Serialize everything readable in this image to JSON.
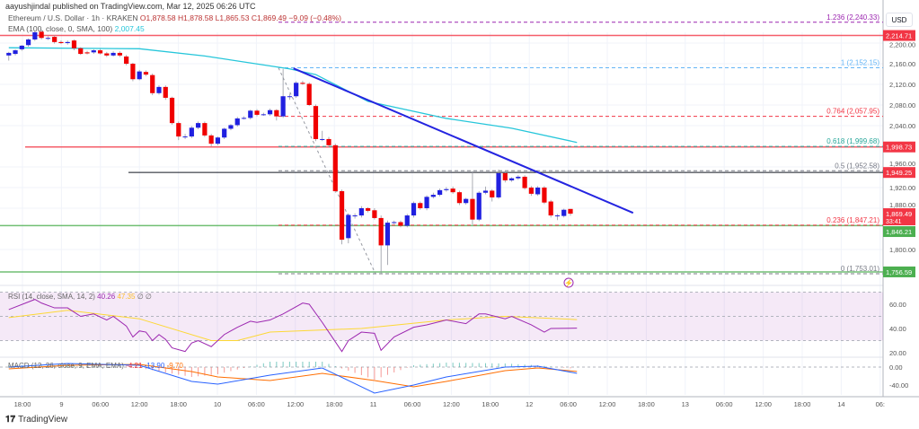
{
  "header": {
    "published": "aayushjindal published on TradingView.com, Mar 12, 2025 06:26 UTC"
  },
  "legend": {
    "symbol": "Ethereum / U.S. Dollar · 1h · KRAKEN",
    "open": "O1,878.58",
    "high": "H1,878.58",
    "low": "L1,865.53",
    "close": "C1,869.49",
    "change": "−9.09 (−0.48%)"
  },
  "ema": {
    "label": "EMA (100, close, 0, SMA, 100)",
    "value": "2,007.45"
  },
  "rsi": {
    "label": "RSI (14, close, SMA, 14, 2)",
    "value": "40.26",
    "sma": "47.35",
    "extra": "∅ ∅"
  },
  "macd": {
    "label": "MACD (12, 26, close, 9, EMA, EMA)",
    "hist": "-4.21",
    "macd": "-13.90",
    "signal": "-9.70"
  },
  "price_axis": {
    "currency": "USD",
    "ticks": [
      "2,200.00",
      "2,160.00",
      "2,120.00",
      "2,080.00",
      "2,040.00",
      "1,960.00",
      "1,920.00",
      "1,880.00",
      "1,800.00"
    ],
    "tick_values": [
      2200,
      2160,
      2120,
      2080,
      2040,
      1960,
      1920,
      1880,
      1800
    ]
  },
  "rsi_axis": {
    "ticks": [
      "60.00",
      "40.00",
      "20.00"
    ],
    "tick_values": [
      60,
      40,
      20
    ]
  },
  "macd_axis": {
    "ticks": [
      "0.00",
      "-40.00"
    ],
    "tick_values": [
      0,
      -40
    ]
  },
  "time_axis": {
    "ticks": [
      "18:00",
      "9",
      "06:00",
      "12:00",
      "18:00",
      "10",
      "06:00",
      "12:00",
      "18:00",
      "11",
      "06:00",
      "12:00",
      "18:00",
      "12",
      "06:00",
      "12:00",
      "18:00",
      "13",
      "06:00",
      "12:00",
      "18:00",
      "14",
      "06:"
    ]
  },
  "horizontal_levels": [
    {
      "price": 2214.71,
      "label": "2,214.71",
      "color": "#f23645"
    },
    {
      "price": 1998.73,
      "label": "1,998.73",
      "color": "#f23645"
    },
    {
      "price": 1949.25,
      "label": "1,949.25",
      "color": "#f23645",
      "line": "#131722"
    },
    {
      "price": 1846.21,
      "label": "1,846.21",
      "color": "#4caf50"
    },
    {
      "price": 1756.59,
      "label": "1,756.59",
      "color": "#4caf50"
    }
  ],
  "last_price": {
    "label": "1,869.49",
    "countdown": "33:41",
    "price": 1869.49,
    "color": "#f23645"
  },
  "fib_levels": [
    {
      "price": 2240.33,
      "label": "1.236 (2,240.33)",
      "color": "#9c27b0"
    },
    {
      "price": 2152.15,
      "label": "1 (2,152.15)",
      "color": "#64b5f6"
    },
    {
      "price": 2057.95,
      "label": "0.764 (2,057.95)",
      "color": "#f23645"
    },
    {
      "price": 1999.68,
      "label": "0.618 (1,999.68)",
      "color": "#26a69a"
    },
    {
      "price": 1952.58,
      "label": "0.5 (1,952.58)",
      "color": "#787b86"
    },
    {
      "price": 1847.21,
      "label": "0.236 (1,847.21)",
      "color": "#f23645"
    },
    {
      "price": 1753.01,
      "label": "0 (1,753.01)",
      "color": "#787b86"
    }
  ],
  "colors": {
    "up": "#2020e0",
    "down": "#f00000",
    "ema": "#26c6da",
    "trendline": "#2424e0",
    "rsi": "#9c27b0",
    "rsi_sma": "#fdd835",
    "macd": "#2962ff",
    "signal": "#ff6d00"
  },
  "chart_data": {
    "type": "candlestick",
    "candles_ohlc": [
      [
        2176,
        2183,
        2166,
        2181
      ],
      [
        2179,
        2188,
        2176,
        2186
      ],
      [
        2188,
        2196,
        2185,
        2195
      ],
      [
        2196,
        2209,
        2193,
        2207
      ],
      [
        2207,
        2224,
        2204,
        2221
      ],
      [
        2222,
        2226,
        2207,
        2210
      ],
      [
        2210,
        2213,
        2206,
        2210
      ],
      [
        2212,
        2215,
        2199,
        2202
      ],
      [
        2202,
        2205,
        2198,
        2200
      ],
      [
        2200,
        2205,
        2197,
        2202
      ],
      [
        2205,
        2207,
        2186,
        2190
      ],
      [
        2190,
        2192,
        2177,
        2179
      ],
      [
        2182,
        2185,
        2178,
        2180
      ],
      [
        2182,
        2188,
        2179,
        2186
      ],
      [
        2186,
        2189,
        2178,
        2180
      ],
      [
        2180,
        2183,
        2173,
        2176
      ],
      [
        2176,
        2184,
        2174,
        2181
      ],
      [
        2181,
        2184,
        2173,
        2176
      ],
      [
        2174,
        2177,
        2157,
        2160
      ],
      [
        2160,
        2162,
        2126,
        2130
      ],
      [
        2130,
        2148,
        2128,
        2145
      ],
      [
        2144,
        2147,
        2136,
        2139
      ],
      [
        2138,
        2141,
        2099,
        2103
      ],
      [
        2103,
        2118,
        2100,
        2115
      ],
      [
        2115,
        2118,
        2090,
        2094
      ],
      [
        2094,
        2096,
        2042,
        2045
      ],
      [
        2045,
        2048,
        2012,
        2019
      ],
      [
        2019,
        2024,
        2014,
        2019
      ],
      [
        2019,
        2039,
        2016,
        2036
      ],
      [
        2036,
        2048,
        2033,
        2045
      ],
      [
        2045,
        2048,
        2018,
        2021
      ],
      [
        2021,
        2024,
        2000,
        2005
      ],
      [
        2005,
        2019,
        2002,
        2017
      ],
      [
        2017,
        2036,
        2014,
        2034
      ],
      [
        2034,
        2043,
        2031,
        2041
      ],
      [
        2041,
        2057,
        2038,
        2054
      ],
      [
        2054,
        2058,
        2052,
        2055
      ],
      [
        2055,
        2071,
        2052,
        2069
      ],
      [
        2069,
        2072,
        2058,
        2061
      ],
      [
        2061,
        2065,
        2059,
        2062
      ],
      [
        2062,
        2073,
        2059,
        2070
      ],
      [
        2070,
        2072,
        2050,
        2058
      ],
      [
        2058,
        2150,
        2055,
        2097
      ],
      [
        2097,
        2102,
        2090,
        2097
      ],
      [
        2097,
        2126,
        2094,
        2123
      ],
      [
        2123,
        2127,
        2119,
        2121
      ],
      [
        2121,
        2124,
        2078,
        2080
      ],
      [
        2078,
        2081,
        2010,
        2014
      ],
      [
        2014,
        2030,
        2010,
        2014
      ],
      [
        2014,
        2018,
        2000,
        2002
      ],
      [
        2002,
        2005,
        1910,
        1913
      ],
      [
        1913,
        1916,
        1810,
        1819
      ],
      [
        1822,
        1870,
        1812,
        1867
      ],
      [
        1866,
        1870,
        1860,
        1866
      ],
      [
        1866,
        1884,
        1862,
        1880
      ],
      [
        1880,
        1882,
        1872,
        1875
      ],
      [
        1876,
        1880,
        1858,
        1861
      ],
      [
        1861,
        1866,
        1753,
        1808
      ],
      [
        1808,
        1856,
        1770,
        1852
      ],
      [
        1853,
        1856,
        1849,
        1853
      ],
      [
        1853,
        1856,
        1843,
        1846
      ],
      [
        1846,
        1869,
        1843,
        1866
      ],
      [
        1866,
        1893,
        1862,
        1890
      ],
      [
        1890,
        1893,
        1877,
        1880
      ],
      [
        1880,
        1905,
        1876,
        1902
      ],
      [
        1902,
        1910,
        1899,
        1906
      ],
      [
        1906,
        1918,
        1903,
        1915
      ],
      [
        1915,
        1921,
        1912,
        1917
      ],
      [
        1918,
        1922,
        1908,
        1911
      ],
      [
        1911,
        1914,
        1886,
        1890
      ],
      [
        1890,
        1900,
        1887,
        1898
      ],
      [
        1898,
        1952,
        1848,
        1858
      ],
      [
        1858,
        1913,
        1855,
        1910
      ],
      [
        1910,
        1922,
        1907,
        1914
      ],
      [
        1914,
        1917,
        1893,
        1901
      ],
      [
        1901,
        1955,
        1898,
        1948
      ],
      [
        1948,
        1953,
        1930,
        1934
      ],
      [
        1934,
        1940,
        1931,
        1938
      ],
      [
        1938,
        1944,
        1935,
        1941
      ],
      [
        1941,
        1944,
        1916,
        1919
      ],
      [
        1920,
        1923,
        1904,
        1908
      ],
      [
        1907,
        1923,
        1904,
        1920
      ],
      [
        1920,
        1923,
        1888,
        1891
      ],
      [
        1893,
        1896,
        1862,
        1866
      ],
      [
        1866,
        1869,
        1857,
        1866
      ],
      [
        1865,
        1879,
        1862,
        1877
      ],
      [
        1878.58,
        1878.58,
        1865.53,
        1869.49
      ]
    ],
    "ema100": [
      [
        0,
        2191
      ],
      [
        20,
        2189
      ],
      [
        30,
        2175
      ],
      [
        43,
        2150
      ],
      [
        47,
        2139
      ],
      [
        55,
        2087
      ],
      [
        67,
        2054
      ],
      [
        77,
        2035
      ],
      [
        87,
        2007.45
      ]
    ],
    "trendline": {
      "from": [
        2151,
        41.5
      ],
      "to": [
        1871,
        93.5
      ]
    },
    "rsi": [
      [
        0,
        55.6
      ],
      [
        4,
        64
      ],
      [
        5,
        61
      ],
      [
        7,
        57
      ],
      [
        9,
        57
      ],
      [
        11,
        50
      ],
      [
        13,
        52
      ],
      [
        15,
        47
      ],
      [
        16,
        50
      ],
      [
        18,
        42
      ],
      [
        19,
        33
      ],
      [
        20,
        38
      ],
      [
        21,
        37
      ],
      [
        22,
        30
      ],
      [
        23,
        35
      ],
      [
        24,
        31
      ],
      [
        25,
        24
      ],
      [
        27,
        21
      ],
      [
        28,
        28
      ],
      [
        29,
        30
      ],
      [
        31,
        25
      ],
      [
        33,
        35
      ],
      [
        35,
        41
      ],
      [
        37,
        46
      ],
      [
        38,
        45
      ],
      [
        40,
        47
      ],
      [
        42,
        52
      ],
      [
        45,
        61
      ],
      [
        46,
        60
      ],
      [
        48,
        45
      ],
      [
        49,
        37
      ],
      [
        51,
        21
      ],
      [
        52,
        30
      ],
      [
        54,
        37
      ],
      [
        56,
        36
      ],
      [
        57,
        22
      ],
      [
        59,
        33
      ],
      [
        62,
        41
      ],
      [
        64,
        43
      ],
      [
        67,
        47
      ],
      [
        70,
        44
      ],
      [
        72,
        52
      ],
      [
        73,
        52
      ],
      [
        76,
        48
      ],
      [
        77,
        50
      ],
      [
        80,
        43
      ],
      [
        82,
        37
      ],
      [
        83,
        40
      ],
      [
        87,
        40.26
      ]
    ],
    "rsi_sma": [
      [
        0,
        49
      ],
      [
        9,
        55
      ],
      [
        20,
        48
      ],
      [
        31,
        30
      ],
      [
        35,
        30
      ],
      [
        40,
        37
      ],
      [
        54,
        40
      ],
      [
        67,
        47
      ],
      [
        76,
        50
      ],
      [
        87,
        47.35
      ]
    ],
    "macd": [
      [
        0,
        0
      ],
      [
        9,
        8
      ],
      [
        20,
        4
      ],
      [
        28,
        -32
      ],
      [
        32,
        -38
      ],
      [
        40,
        -18
      ],
      [
        48,
        -2
      ],
      [
        56,
        -58
      ],
      [
        62,
        -40
      ],
      [
        67,
        -22
      ],
      [
        76,
        0
      ],
      [
        81,
        2
      ],
      [
        87,
        -13.9
      ]
    ],
    "signal": [
      [
        0,
        -4
      ],
      [
        9,
        4
      ],
      [
        20,
        6
      ],
      [
        28,
        -10
      ],
      [
        32,
        -22
      ],
      [
        40,
        -30
      ],
      [
        48,
        -14
      ],
      [
        56,
        -30
      ],
      [
        62,
        -44
      ],
      [
        67,
        -32
      ],
      [
        76,
        -8
      ],
      [
        81,
        -2
      ],
      [
        87,
        -9.7
      ]
    ],
    "rsi_band": [
      30,
      70
    ],
    "price_range": [
      1720,
      2260
    ]
  }
}
